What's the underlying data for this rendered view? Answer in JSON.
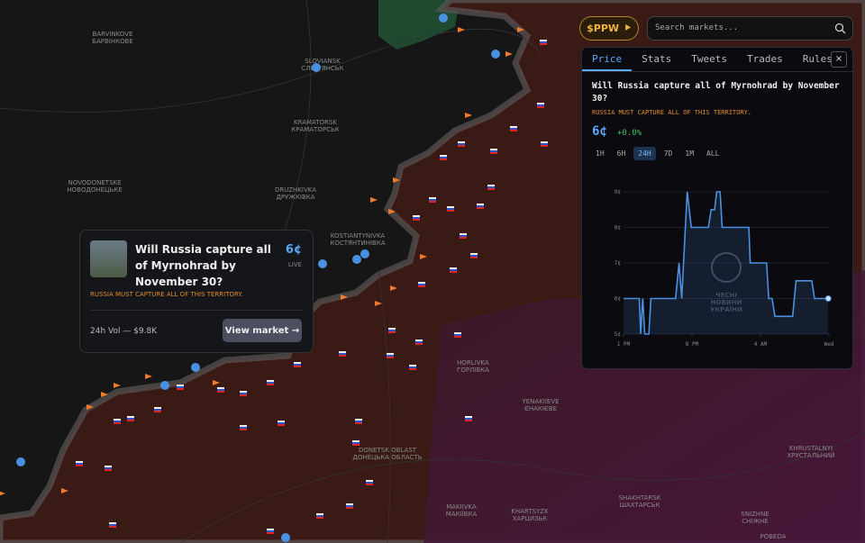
{
  "map": {
    "labels": [
      "BARVINKOVE",
      "БАРВІНКОВЕ",
      "SLOVIANSK",
      "СЛОВ'ЯНСЬК",
      "KRAMATORSK",
      "КРАМАТОРСЬК",
      "NOVODONETSKE",
      "НОВОДОНЕЦЬКЕ",
      "DRUZHKIVKA",
      "ДРУЖКІВКА",
      "KOSTIANTYNIVKA",
      "КОСТЯНТИНІВКА",
      "HORLIVKA",
      "ГОРЛІВКА",
      "YENAKIIEVE",
      "ЄНАКІЄВЕ",
      "DONETSK OBLAST",
      "ДОНЕЦЬКА ОБЛАСТЬ",
      "MAKIIVKA",
      "МАКІЇВКА",
      "KHARTSYZK",
      "ХАРЦИЗЬК",
      "SHAKHTARSK",
      "ШАХТАРСЬК",
      "KHRUSTALNYI",
      "ХРУСТАЛЬНИЙ",
      "SNIZHNE",
      "СНІЖНЕ",
      "POBEDA"
    ]
  },
  "header": {
    "token": "$PPW",
    "search_placeholder": "Search markets..."
  },
  "panel": {
    "tabs": [
      "Price",
      "Stats",
      "Tweets",
      "Trades",
      "Rules"
    ],
    "close": "×",
    "title": "Will Russia capture all of Myrnohrad by November 30?",
    "subtitle": "RUSSIA MUST CAPTURE ALL OF THIS TERRITORY.",
    "price": "6¢",
    "change": "+0.0%",
    "ranges": [
      "1H",
      "6H",
      "24H",
      "7D",
      "1M",
      "ALL"
    ],
    "watermark": [
      "ЧЕСНІ",
      "НОВИНИ",
      "УКРАЇНИ"
    ],
    "chart": {
      "type": "line",
      "color": "#4a90e2",
      "x": [
        0,
        0.23,
        0.25,
        0.28,
        0.31,
        0.37,
        0.4,
        0.76,
        0.81,
        0.85,
        0.93,
        0.99,
        1.24,
        1.28,
        1.33,
        1.36,
        1.41,
        1.44,
        1.83,
        1.85,
        2.09,
        2.12,
        2.17,
        2.21,
        2.47,
        2.52,
        2.75,
        2.79,
        2.99
      ],
      "values": [
        6,
        6,
        5,
        6,
        5,
        5,
        6,
        6,
        7,
        6,
        9,
        8,
        8,
        8.5,
        8.5,
        9,
        9,
        8,
        8,
        7,
        7,
        6,
        6,
        5.5,
        5.5,
        6.5,
        6.5,
        6,
        6
      ],
      "xlim": [
        0,
        3
      ],
      "ylim": [
        5,
        9
      ],
      "xticks": [
        {
          "value": 0,
          "label": "1 PM"
        },
        {
          "value": 1,
          "label": "8 PM"
        },
        {
          "value": 2,
          "label": "4 AM"
        },
        {
          "value": 3,
          "label": "Wed"
        }
      ],
      "yticks": [
        {
          "value": 5,
          "label": "5¢"
        },
        {
          "value": 6,
          "label": "6¢"
        },
        {
          "value": 7,
          "label": "7¢"
        },
        {
          "value": 8,
          "label": "8¢"
        },
        {
          "value": 9,
          "label": "9¢"
        }
      ],
      "grid": true
    }
  },
  "popup": {
    "title": "Will Russia capture all of Myrnohrad by November 30?",
    "price": "6¢",
    "status": "LIVE",
    "subtitle": "RUSSIA MUST CAPTURE ALL OF THIS TERRITORY.",
    "volume": "24h Vol — $9.8K",
    "button": "View market →"
  }
}
